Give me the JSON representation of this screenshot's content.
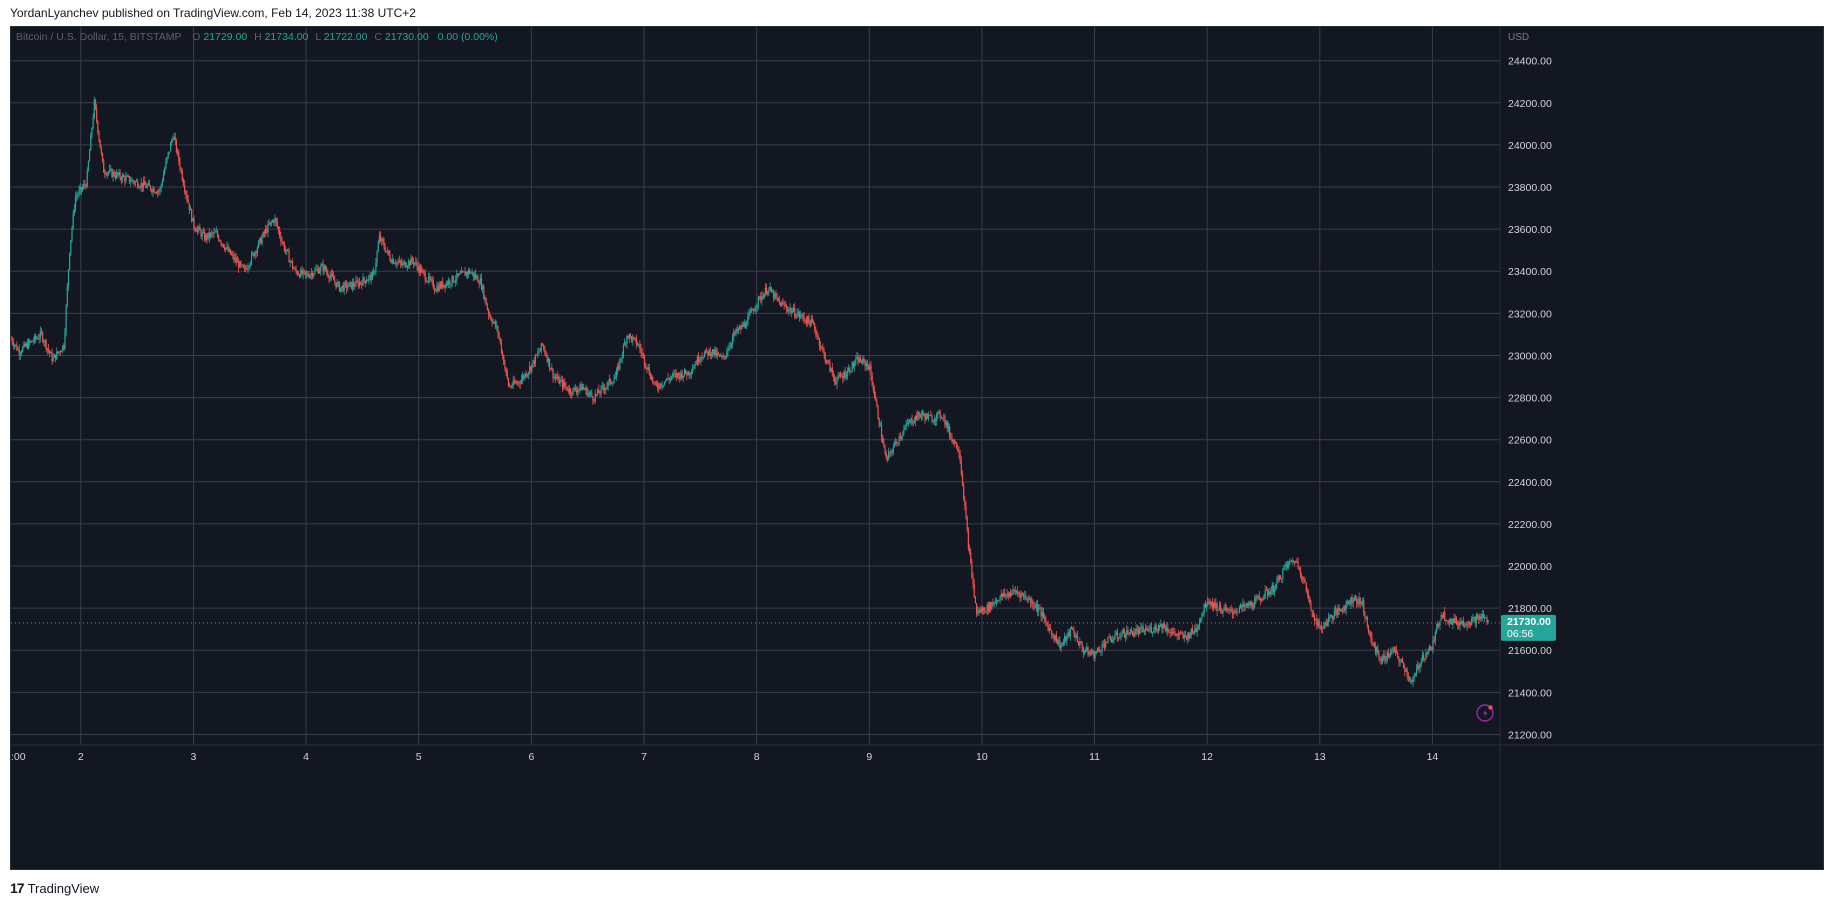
{
  "header": {
    "published": "YordanLyanchev published on TradingView.com, Feb 14, 2023 11:38 UTC+2"
  },
  "legend": {
    "symbol": "Bitcoin / U.S. Dollar, 15, BITSTAMP",
    "o_label": "O",
    "o_value": "21729.00",
    "h_label": "H",
    "h_value": "21734.00",
    "l_label": "L",
    "l_value": "21722.00",
    "c_label": "C",
    "c_value": "21730.00",
    "change": "0.00 (0.00%)"
  },
  "price_tag": {
    "price": "21730.00",
    "countdown": "06:56"
  },
  "footer": {
    "logo_glyph": "17",
    "brand": "TradingView"
  },
  "colors": {
    "background": "#131722",
    "grid": "#3a3e4a",
    "up": "#26a69a",
    "down": "#ef5350",
    "axis_text": "#d1d4dc"
  },
  "chart_data": {
    "type": "candlestick",
    "title": "Bitcoin / U.S. Dollar, 15, BITSTAMP",
    "currency_label": "USD",
    "ylim": [
      21150,
      24560
    ],
    "y_ticks": [
      21200,
      21400,
      21600,
      21800,
      22000,
      22200,
      22400,
      22600,
      22800,
      23000,
      23200,
      23400,
      23600,
      23800,
      24000,
      24200,
      24400
    ],
    "x_ticks": [
      {
        "day": 1.0,
        "label": ":00"
      },
      {
        "day": 2,
        "label": "2"
      },
      {
        "day": 3,
        "label": "3"
      },
      {
        "day": 4,
        "label": "4"
      },
      {
        "day": 5,
        "label": "5"
      },
      {
        "day": 6,
        "label": "6"
      },
      {
        "day": 7,
        "label": "7"
      },
      {
        "day": 8,
        "label": "8"
      },
      {
        "day": 9,
        "label": "9"
      },
      {
        "day": 10,
        "label": "10"
      },
      {
        "day": 11,
        "label": "11"
      },
      {
        "day": 12,
        "label": "12"
      },
      {
        "day": 13,
        "label": "13"
      },
      {
        "day": 14,
        "label": "14"
      }
    ],
    "xlim": [
      1.38,
      14.6
    ],
    "last_price": 21730,
    "price_path": [
      [
        1.38,
        23080
      ],
      [
        1.45,
        23020
      ],
      [
        1.55,
        23060
      ],
      [
        1.65,
        23100
      ],
      [
        1.75,
        22980
      ],
      [
        1.85,
        23050
      ],
      [
        1.9,
        23500
      ],
      [
        1.95,
        23750
      ],
      [
        2.05,
        23820
      ],
      [
        2.12,
        24200
      ],
      [
        2.2,
        23880
      ],
      [
        2.35,
        23850
      ],
      [
        2.5,
        23820
      ],
      [
        2.6,
        23800
      ],
      [
        2.7,
        23780
      ],
      [
        2.75,
        23900
      ],
      [
        2.82,
        24050
      ],
      [
        2.9,
        23850
      ],
      [
        3.0,
        23620
      ],
      [
        3.1,
        23560
      ],
      [
        3.2,
        23580
      ],
      [
        3.3,
        23500
      ],
      [
        3.45,
        23400
      ],
      [
        3.55,
        23500
      ],
      [
        3.65,
        23600
      ],
      [
        3.72,
        23650
      ],
      [
        3.8,
        23520
      ],
      [
        3.9,
        23400
      ],
      [
        4.0,
        23380
      ],
      [
        4.15,
        23420
      ],
      [
        4.3,
        23320
      ],
      [
        4.45,
        23340
      ],
      [
        4.6,
        23380
      ],
      [
        4.65,
        23560
      ],
      [
        4.75,
        23460
      ],
      [
        4.85,
        23430
      ],
      [
        4.95,
        23450
      ],
      [
        5.05,
        23380
      ],
      [
        5.15,
        23320
      ],
      [
        5.3,
        23360
      ],
      [
        5.45,
        23400
      ],
      [
        5.55,
        23350
      ],
      [
        5.62,
        23200
      ],
      [
        5.7,
        23120
      ],
      [
        5.8,
        22850
      ],
      [
        5.9,
        22880
      ],
      [
        6.0,
        22950
      ],
      [
        6.1,
        23050
      ],
      [
        6.2,
        22900
      ],
      [
        6.35,
        22830
      ],
      [
        6.45,
        22850
      ],
      [
        6.55,
        22800
      ],
      [
        6.65,
        22850
      ],
      [
        6.75,
        22900
      ],
      [
        6.85,
        23100
      ],
      [
        6.95,
        23050
      ],
      [
        7.1,
        22850
      ],
      [
        7.25,
        22900
      ],
      [
        7.4,
        22920
      ],
      [
        7.5,
        23000
      ],
      [
        7.6,
        23020
      ],
      [
        7.7,
        22980
      ],
      [
        7.8,
        23100
      ],
      [
        7.9,
        23150
      ],
      [
        8.0,
        23250
      ],
      [
        8.1,
        23320
      ],
      [
        8.2,
        23250
      ],
      [
        8.35,
        23200
      ],
      [
        8.5,
        23150
      ],
      [
        8.6,
        23000
      ],
      [
        8.7,
        22880
      ],
      [
        8.8,
        22920
      ],
      [
        8.9,
        22980
      ],
      [
        9.0,
        22950
      ],
      [
        9.05,
        22800
      ],
      [
        9.15,
        22500
      ],
      [
        9.25,
        22600
      ],
      [
        9.35,
        22680
      ],
      [
        9.45,
        22720
      ],
      [
        9.55,
        22700
      ],
      [
        9.65,
        22720
      ],
      [
        9.72,
        22620
      ],
      [
        9.8,
        22550
      ],
      [
        9.88,
        22100
      ],
      [
        9.95,
        21780
      ],
      [
        10.05,
        21800
      ],
      [
        10.15,
        21850
      ],
      [
        10.3,
        21880
      ],
      [
        10.4,
        21850
      ],
      [
        10.5,
        21800
      ],
      [
        10.6,
        21700
      ],
      [
        10.7,
        21620
      ],
      [
        10.8,
        21700
      ],
      [
        10.9,
        21600
      ],
      [
        11.0,
        21580
      ],
      [
        11.1,
        21640
      ],
      [
        11.25,
        21680
      ],
      [
        11.4,
        21690
      ],
      [
        11.5,
        21700
      ],
      [
        11.6,
        21720
      ],
      [
        11.7,
        21680
      ],
      [
        11.8,
        21660
      ],
      [
        11.9,
        21700
      ],
      [
        12.0,
        21840
      ],
      [
        12.1,
        21800
      ],
      [
        12.2,
        21780
      ],
      [
        12.3,
        21800
      ],
      [
        12.4,
        21820
      ],
      [
        12.5,
        21860
      ],
      [
        12.6,
        21900
      ],
      [
        12.7,
        22000
      ],
      [
        12.78,
        22030
      ],
      [
        12.85,
        21950
      ],
      [
        12.92,
        21800
      ],
      [
        13.0,
        21700
      ],
      [
        13.1,
        21760
      ],
      [
        13.2,
        21800
      ],
      [
        13.3,
        21850
      ],
      [
        13.38,
        21820
      ],
      [
        13.45,
        21650
      ],
      [
        13.55,
        21550
      ],
      [
        13.65,
        21600
      ],
      [
        13.75,
        21520
      ],
      [
        13.82,
        21440
      ],
      [
        13.9,
        21560
      ],
      [
        14.0,
        21620
      ],
      [
        14.08,
        21780
      ],
      [
        14.15,
        21740
      ],
      [
        14.25,
        21730
      ],
      [
        14.35,
        21740
      ],
      [
        14.45,
        21760
      ],
      [
        14.5,
        21730
      ]
    ]
  }
}
